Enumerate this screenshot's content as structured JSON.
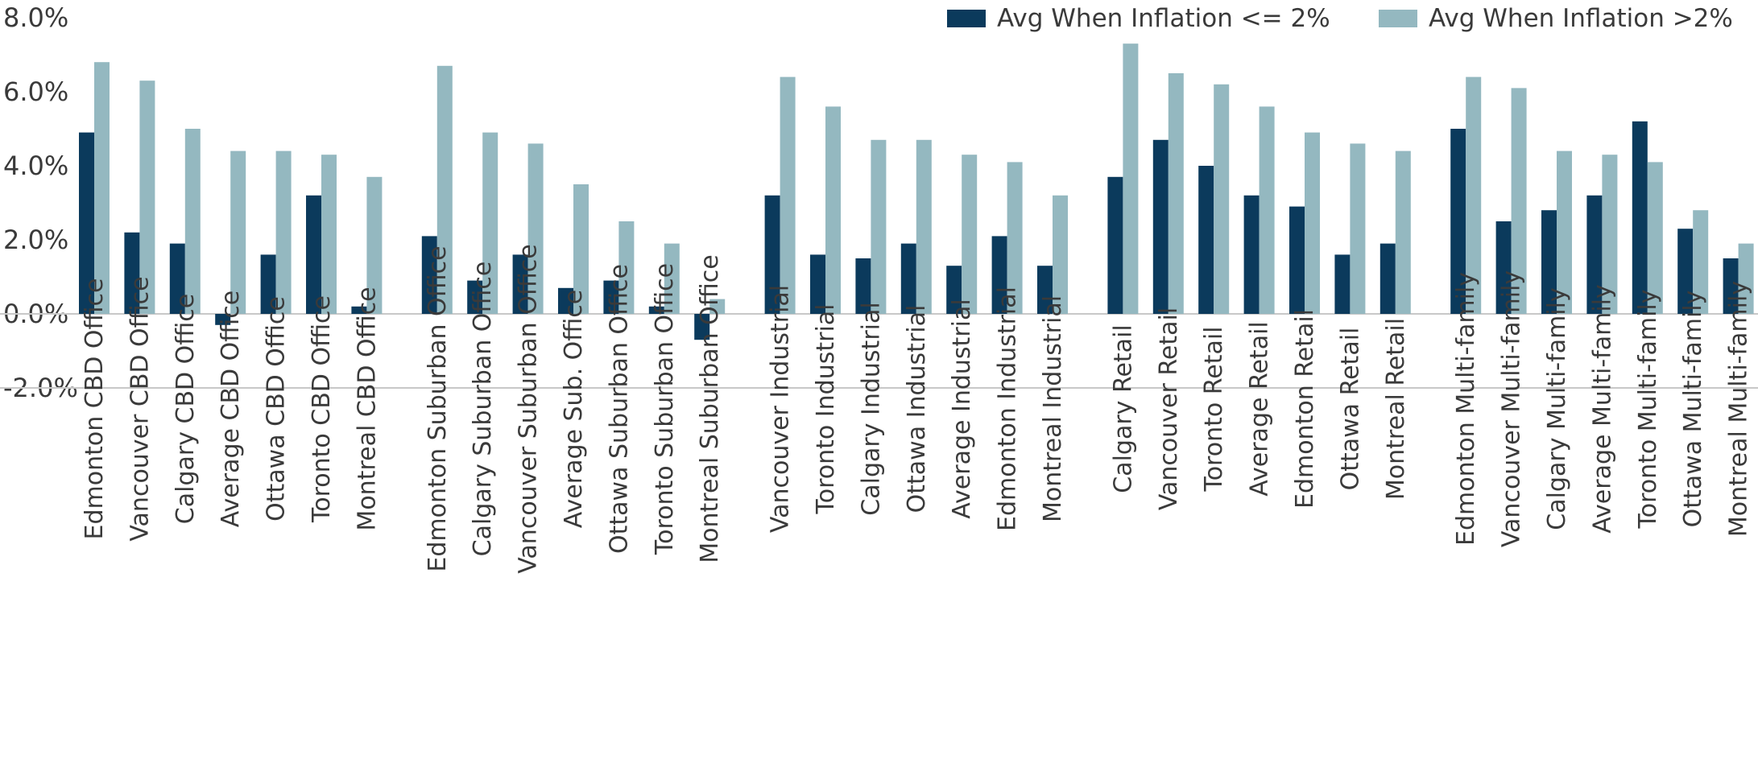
{
  "chart_data": {
    "type": "bar",
    "title": "",
    "xlabel": "",
    "ylabel": "",
    "ylim": [
      -2.0,
      8.0
    ],
    "yticks": [
      "-2.0%",
      "0.0%",
      "2.0%",
      "4.0%",
      "6.0%",
      "8.0%"
    ],
    "ytick_values": [
      -2.0,
      0.0,
      2.0,
      4.0,
      6.0,
      8.0
    ],
    "grid": false,
    "legend_placement": "top-right",
    "groups": [
      {
        "categories": [
          "Edmonton CBD Office",
          "Vancouver CBD Office",
          "Calgary CBD Office",
          "Average CBD Office",
          "Ottawa CBD Office",
          "Toronto CBD Office",
          "Montreal CBD Office"
        ]
      },
      {
        "categories": [
          "Edmonton Suburban Office",
          "Calgary Suburban Office",
          "Vancouver Suburban Office",
          "Average Sub. Office",
          "Ottawa Suburban Office",
          "Toronto Suburban Office",
          "Montreal Suburban Office"
        ]
      },
      {
        "categories": [
          "Vancouver Industrial",
          "Toronto Industrial",
          "Calgary Industrial",
          "Ottawa Industrial",
          "Average Industrial",
          "Edmonton Industrial",
          "Montreal Industrial"
        ]
      },
      {
        "categories": [
          "Calgary Retail",
          "Vancouver Retail",
          "Toronto Retail",
          "Average Retail",
          "Edmonton Retail",
          "Ottawa Retail",
          "Montreal Retail"
        ]
      },
      {
        "categories": [
          "Edmonton Multi-family",
          "Vancouver Multi-family",
          "Calgary Multi-family",
          "Average Multi-family",
          "Toronto Multi-family",
          "Ottawa Multi-family",
          "Montreal Multi-family"
        ]
      }
    ],
    "categories": [
      "Edmonton CBD Office",
      "Vancouver CBD Office",
      "Calgary CBD Office",
      "Average CBD Office",
      "Ottawa CBD Office",
      "Toronto CBD Office",
      "Montreal CBD Office",
      "Edmonton Suburban Office",
      "Calgary Suburban Office",
      "Vancouver Suburban Office",
      "Average Sub. Office",
      "Ottawa Suburban Office",
      "Toronto Suburban Office",
      "Montreal Suburban Office",
      "Vancouver Industrial",
      "Toronto Industrial",
      "Calgary Industrial",
      "Ottawa Industrial",
      "Average Industrial",
      "Edmonton Industrial",
      "Montreal Industrial",
      "Calgary Retail",
      "Vancouver Retail",
      "Toronto Retail",
      "Average Retail",
      "Edmonton Retail",
      "Ottawa Retail",
      "Montreal Retail",
      "Edmonton Multi-family",
      "Vancouver Multi-family",
      "Calgary Multi-family",
      "Average Multi-family",
      "Toronto Multi-family",
      "Ottawa Multi-family",
      "Montreal Multi-family"
    ],
    "series": [
      {
        "name": "Avg When Inflation <= 2%",
        "color": "#0b3a5c",
        "values": [
          4.9,
          2.2,
          1.9,
          -0.3,
          1.6,
          3.2,
          0.2,
          2.1,
          0.9,
          1.6,
          0.7,
          0.9,
          0.2,
          -0.7,
          3.2,
          1.6,
          1.5,
          1.9,
          1.3,
          2.1,
          1.3,
          3.7,
          4.7,
          4.0,
          3.2,
          2.9,
          1.6,
          1.9,
          5.0,
          2.5,
          2.8,
          3.2,
          5.2,
          2.3,
          1.5
        ]
      },
      {
        "name": "Avg When Inflation >2%",
        "color": "#94b8c0",
        "values": [
          6.8,
          6.3,
          5.0,
          4.4,
          4.4,
          4.3,
          3.7,
          6.7,
          4.9,
          4.6,
          3.5,
          2.5,
          1.9,
          0.4,
          6.4,
          5.6,
          4.7,
          4.7,
          4.3,
          4.1,
          3.2,
          7.3,
          6.5,
          6.2,
          5.6,
          4.9,
          4.6,
          4.4,
          6.4,
          6.1,
          4.4,
          4.3,
          4.1,
          2.8,
          1.9
        ]
      }
    ]
  },
  "legend": {
    "item1_label": "Avg When Inflation  <= 2%",
    "item2_label": "Avg When Inflation  >2%"
  },
  "colors": {
    "series1": "#0b3a5c",
    "series2": "#94b8c0",
    "axis": "#c8c8c8",
    "text": "#3a3a3a"
  }
}
